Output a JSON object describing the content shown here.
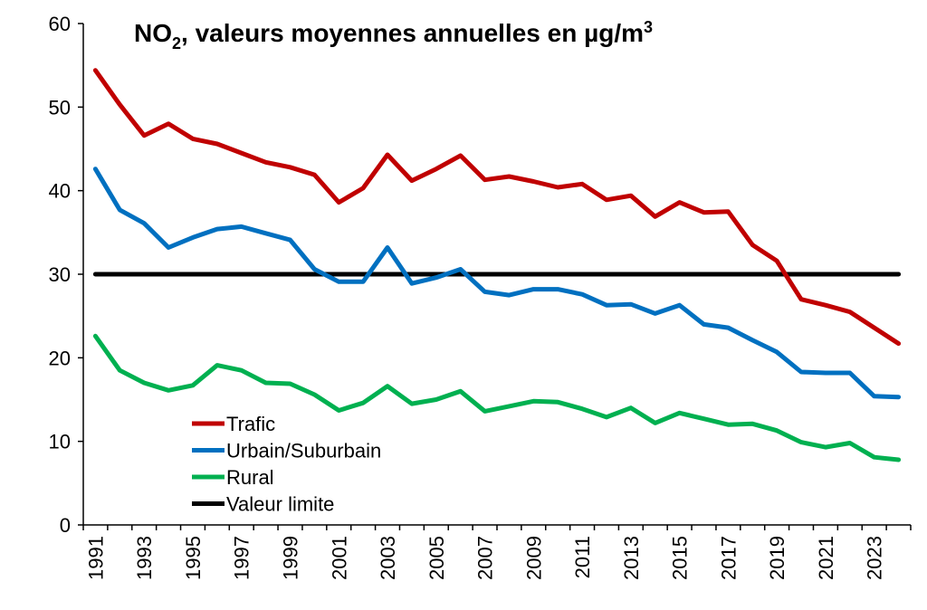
{
  "chart_data": {
    "type": "line",
    "title_prefix": "NO",
    "title_sub": "2",
    "title_rest": ", valeurs moyennes annuelles en µg/m",
    "title_sup": "3",
    "x": [
      1991,
      1992,
      1993,
      1994,
      1995,
      1996,
      1997,
      1998,
      1999,
      2000,
      2001,
      2002,
      2003,
      2004,
      2005,
      2006,
      2007,
      2008,
      2009,
      2010,
      2011,
      2012,
      2013,
      2014,
      2015,
      2016,
      2017,
      2018,
      2019,
      2020,
      2021,
      2022,
      2023,
      2024
    ],
    "x_tick_labels": [
      "1991",
      "1993",
      "1995",
      "1997",
      "1999",
      "2001",
      "2003",
      "2005",
      "2007",
      "2009",
      "2011",
      "2013",
      "2015",
      "2017",
      "2019",
      "2021",
      "2023"
    ],
    "y_tick_labels": [
      "0",
      "10",
      "20",
      "30",
      "40",
      "50",
      "60"
    ],
    "ylim": [
      0,
      60
    ],
    "series": [
      {
        "name": "Trafic",
        "color": "#c00000",
        "values": [
          54.4,
          50.3,
          46.6,
          48.0,
          46.2,
          45.6,
          44.5,
          43.4,
          42.8,
          41.9,
          38.6,
          40.3,
          44.3,
          41.2,
          42.6,
          44.2,
          41.3,
          41.7,
          41.1,
          40.4,
          40.8,
          38.9,
          39.4,
          36.9,
          38.6,
          37.4,
          37.5,
          33.5,
          31.6,
          27.0,
          26.3,
          25.5,
          23.6,
          21.7
        ]
      },
      {
        "name": "Urbain/Suburbain",
        "color": "#0070c0",
        "values": [
          42.6,
          37.7,
          36.1,
          33.2,
          34.4,
          35.4,
          35.7,
          34.9,
          34.1,
          30.6,
          29.1,
          29.1,
          33.2,
          28.9,
          29.6,
          30.6,
          27.9,
          27.5,
          28.2,
          28.2,
          27.6,
          26.3,
          26.4,
          25.3,
          26.3,
          24.0,
          23.6,
          22.1,
          20.7,
          18.3,
          18.2,
          18.2,
          15.4,
          15.3
        ]
      },
      {
        "name": "Rural",
        "color": "#00b050",
        "values": [
          22.6,
          18.5,
          17.0,
          16.1,
          16.7,
          19.1,
          18.5,
          17.0,
          16.9,
          15.6,
          13.7,
          14.6,
          16.6,
          14.5,
          15.0,
          16.0,
          13.6,
          14.2,
          14.8,
          14.7,
          13.9,
          12.9,
          14.0,
          12.2,
          13.4,
          12.7,
          12.0,
          12.1,
          11.3,
          9.9,
          9.3,
          9.8,
          8.1,
          7.8
        ]
      },
      {
        "name": "Valeur limite",
        "color": "#000000",
        "values": [
          30,
          30,
          30,
          30,
          30,
          30,
          30,
          30,
          30,
          30,
          30,
          30,
          30,
          30,
          30,
          30,
          30,
          30,
          30,
          30,
          30,
          30,
          30,
          30,
          30,
          30,
          30,
          30,
          30,
          30,
          30,
          30,
          30,
          30
        ]
      }
    ]
  }
}
